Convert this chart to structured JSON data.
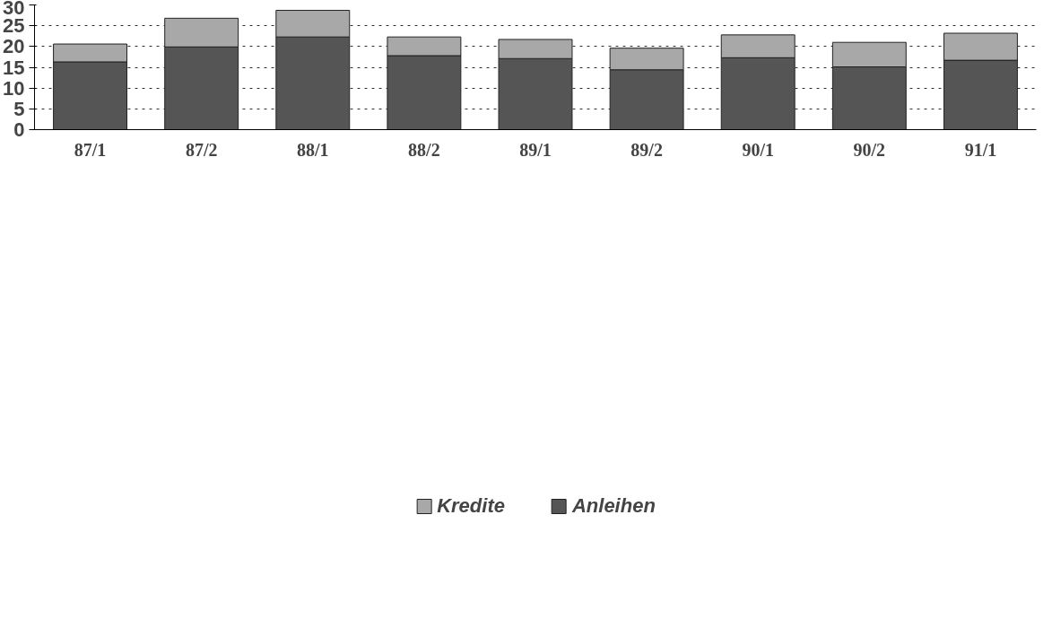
{
  "chart_data": {
    "type": "bar",
    "stacked": true,
    "categories": [
      "87/1",
      "87/2",
      "88/1",
      "88/2",
      "89/1",
      "89/2",
      "90/1",
      "90/2",
      "91/1"
    ],
    "series": [
      {
        "name": "Anleihen",
        "color": "#555555",
        "values": [
          16.3,
          19.9,
          22.3,
          17.8,
          17.1,
          14.4,
          17.3,
          15.1,
          16.7
        ]
      },
      {
        "name": "Kredite",
        "color": "#a8a8a8",
        "values": [
          4.3,
          6.9,
          6.4,
          4.5,
          4.6,
          5.2,
          5.5,
          5.9,
          6.5
        ]
      }
    ],
    "ylim": [
      0,
      30
    ],
    "yticks": [
      0,
      5,
      10,
      15,
      20,
      25,
      30
    ],
    "grid": "y",
    "legend": "bottom"
  }
}
